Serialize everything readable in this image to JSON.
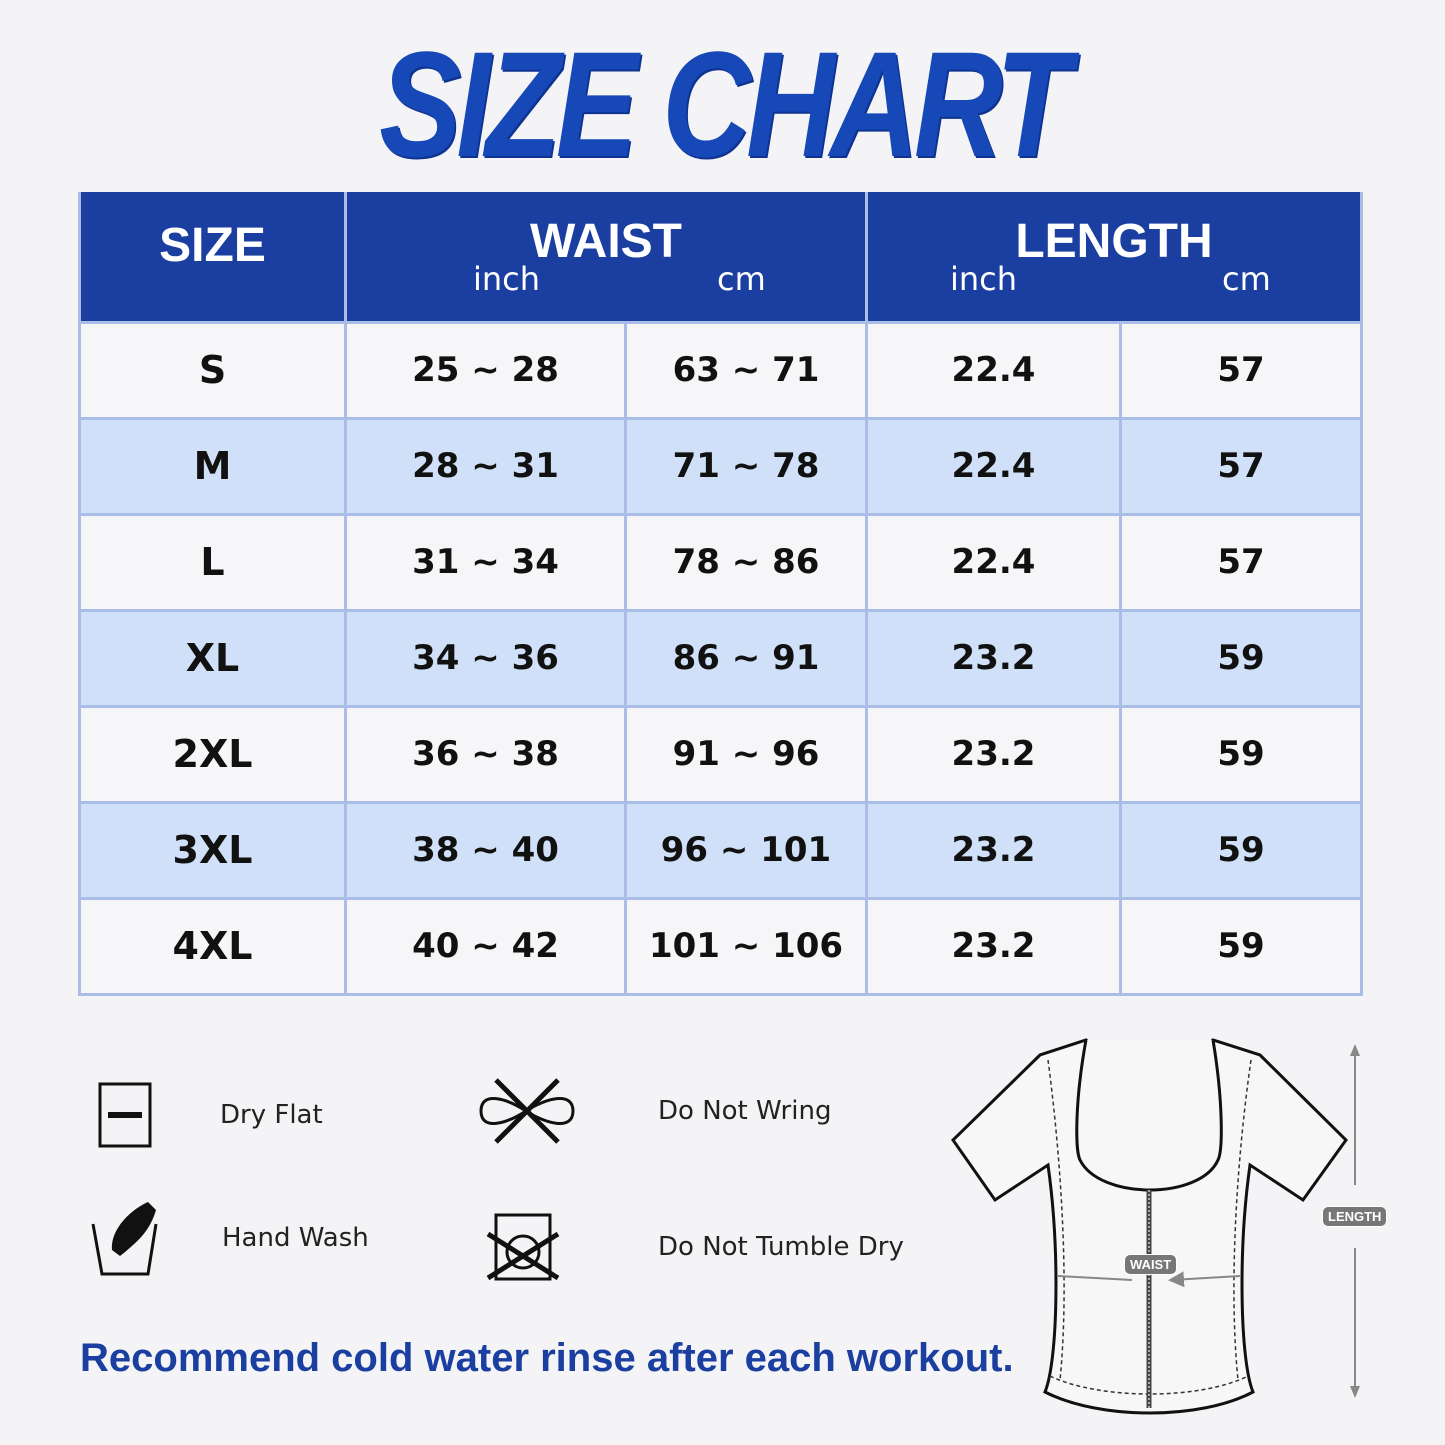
{
  "title": "SIZE CHART",
  "table": {
    "headers": {
      "size": "SIZE",
      "waist": "WAIST",
      "length": "LENGTH",
      "inch": "inch",
      "cm": "cm"
    },
    "rows": [
      {
        "size": "S",
        "waist_inch": "25 ~ 28",
        "waist_cm": "63 ~ 71",
        "length_inch": "22.4",
        "length_cm": "57"
      },
      {
        "size": "M",
        "waist_inch": "28 ~ 31",
        "waist_cm": "71 ~ 78",
        "length_inch": "22.4",
        "length_cm": "57"
      },
      {
        "size": "L",
        "waist_inch": "31 ~ 34",
        "waist_cm": "78 ~ 86",
        "length_inch": "22.4",
        "length_cm": "57"
      },
      {
        "size": "XL",
        "waist_inch": "34 ~ 36",
        "waist_cm": "86 ~ 91",
        "length_inch": "23.2",
        "length_cm": "59"
      },
      {
        "size": "2XL",
        "waist_inch": "36 ~ 38",
        "waist_cm": "91 ~ 96",
        "length_inch": "23.2",
        "length_cm": "59"
      },
      {
        "size": "3XL",
        "waist_inch": "38 ~ 40",
        "waist_cm": "96 ~ 101",
        "length_inch": "23.2",
        "length_cm": "59"
      },
      {
        "size": "4XL",
        "waist_inch": "40 ~ 42",
        "waist_cm": "101 ~ 106",
        "length_inch": "23.2",
        "length_cm": "59"
      }
    ]
  },
  "care": [
    {
      "icon": "dry-flat-icon",
      "label": "Dry Flat"
    },
    {
      "icon": "do-not-wring-icon",
      "label": "Do Not Wring"
    },
    {
      "icon": "hand-wash-icon",
      "label": "Hand Wash"
    },
    {
      "icon": "do-not-tumble-dry-icon",
      "label": "Do Not Tumble Dry"
    }
  ],
  "note": "Recommend cold water rinse after each workout.",
  "diagram": {
    "waist_label": "WAIST",
    "length_label": "LENGTH"
  },
  "colors": {
    "brand": "#1a3fa0",
    "row_alt": "#cfe0f8",
    "border": "#a9bde6"
  }
}
